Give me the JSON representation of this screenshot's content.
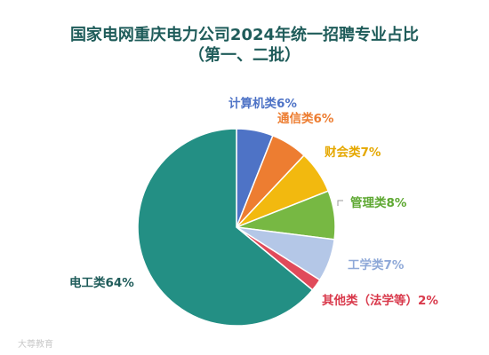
{
  "chart_data": {
    "type": "pie",
    "title": "国家电网重庆电力公司2024年统一招聘专业占比",
    "subtitle": "（第一、二批）",
    "slices": [
      {
        "label": "计算机类6%",
        "value": 6,
        "color": "#4e73c6"
      },
      {
        "label": "通信类6%",
        "value": 6,
        "color": "#ed7d31"
      },
      {
        "label": "财会类7%",
        "value": 7,
        "color": "#f2b90f"
      },
      {
        "label": "管理类8%",
        "value": 8,
        "color": "#77b843"
      },
      {
        "label": "工学类7%",
        "value": 7,
        "color": "#b4c7e7"
      },
      {
        "label": "其他类（法学等）2%",
        "value": 2,
        "color": "#e04a5a"
      },
      {
        "label": "电工类64%",
        "value": 64,
        "color": "#238f84"
      }
    ]
  },
  "watermark": "大尊教育"
}
